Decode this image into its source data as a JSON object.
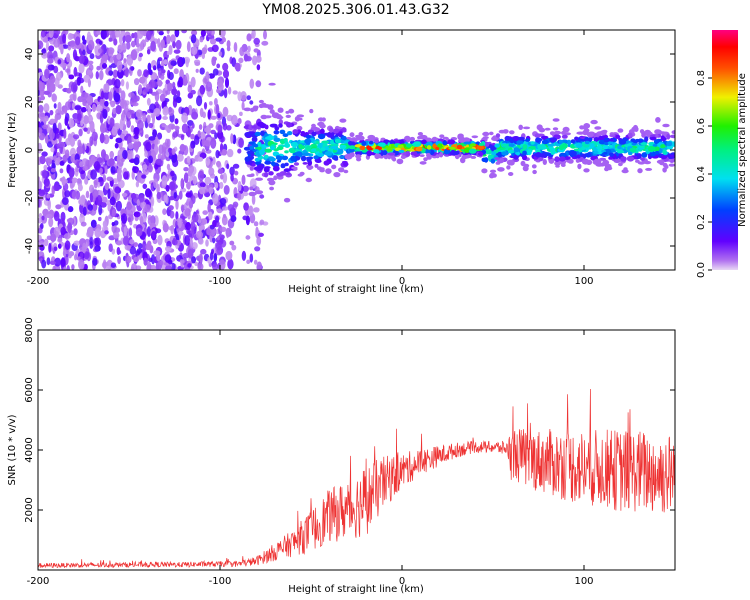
{
  "title": "YM08.2025.306.01.43.G32",
  "chart_data": [
    {
      "type": "heatmap",
      "title": "YM08.2025.306.01.43.G32",
      "xlabel": "Height of straight line (km)",
      "ylabel": "Frequency (Hz)",
      "xlim": [
        -200,
        150
      ],
      "ylim": [
        -50,
        50
      ],
      "xticks": [
        -200,
        -100,
        0,
        100
      ],
      "yticks": [
        -40,
        -20,
        0,
        20,
        40
      ],
      "colorbar": {
        "label": "Normalized spectral amplitude",
        "range": [
          0,
          1
        ],
        "ticks": [
          "0.0",
          "0.2",
          "0.4",
          "0.6",
          "0.8"
        ],
        "colormap": "rainbow (violet-blue-cyan-green-yellow-red-magenta)"
      },
      "features": {
        "noise_region_x": [
          -200,
          -85
        ],
        "signal_trace_x": [
          -85,
          150
        ],
        "signal_center_frequency_hz": 1,
        "peak_band_x": [
          -25,
          45
        ]
      }
    },
    {
      "type": "line",
      "xlabel": "Height of straight line (km)",
      "ylabel": "SNR (10 * v/v)",
      "xlim": [
        -200,
        150
      ],
      "ylim": [
        0,
        8000
      ],
      "xticks": [
        -200,
        -100,
        0,
        100
      ],
      "yticks": [
        2000,
        4000,
        6000,
        8000
      ],
      "color": "#ee3333",
      "series": [
        {
          "name": "SNR",
          "x": [
            -200,
            -180,
            -160,
            -140,
            -120,
            -100,
            -90,
            -80,
            -70,
            -60,
            -50,
            -40,
            -30,
            -20,
            -10,
            0,
            10,
            20,
            30,
            40,
            50,
            58,
            60,
            70,
            80,
            90,
            100,
            110,
            120,
            130,
            140,
            150
          ],
          "y": [
            150,
            160,
            170,
            180,
            180,
            200,
            200,
            300,
            600,
            900,
            1300,
            1800,
            2000,
            2300,
            2900,
            3300,
            3600,
            3800,
            4000,
            4100,
            4100,
            4050,
            3900,
            3700,
            3600,
            3500,
            3400,
            3400,
            3300,
            3300,
            3200,
            3200
          ],
          "spread": [
            80,
            80,
            80,
            90,
            90,
            90,
            100,
            150,
            300,
            450,
            700,
            900,
            1000,
            1200,
            900,
            600,
            450,
            350,
            250,
            200,
            200,
            250,
            900,
            1000,
            1100,
            1200,
            1300,
            1300,
            1400,
            1400,
            1400,
            1400
          ]
        }
      ]
    }
  ]
}
